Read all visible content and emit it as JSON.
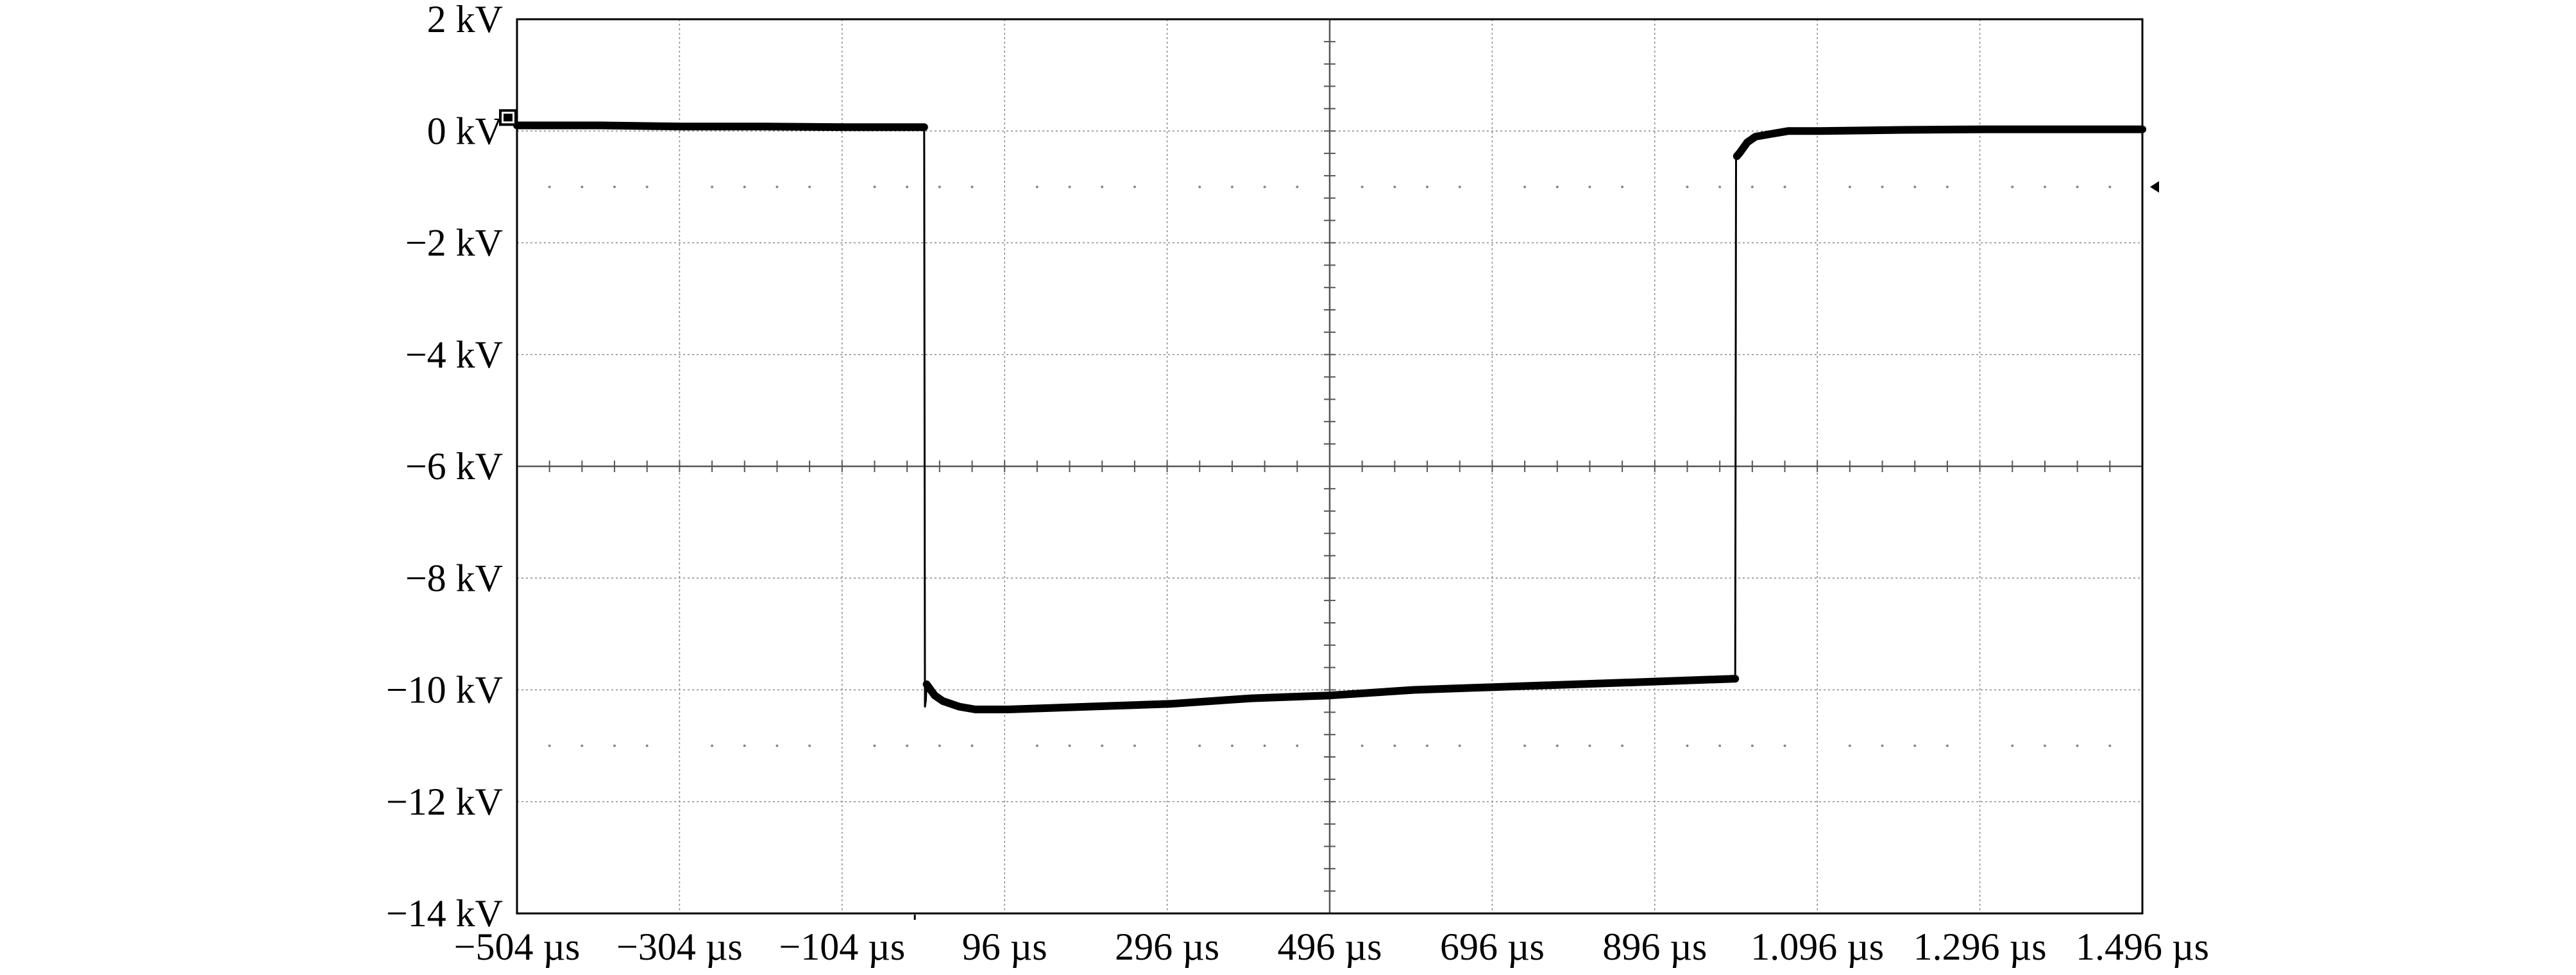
{
  "chart_data": {
    "type": "line",
    "title": "",
    "xlabel": "",
    "ylabel": "",
    "x_ticks": [
      -504,
      -304,
      -104,
      96,
      296,
      496,
      696,
      896,
      1096,
      1296,
      1496
    ],
    "x_tick_labels": [
      "−504 µs",
      "−304 µs",
      "−104 µs",
      "96 µs",
      "296 µs",
      "496 µs",
      "696 µs",
      "896 µs",
      "1.096 µs",
      "1.296 µs",
      "1.496 µs"
    ],
    "xlim": [
      -504,
      1496
    ],
    "y_ticks": [
      2,
      0,
      -2,
      -4,
      -6,
      -8,
      -10,
      -12,
      -14
    ],
    "y_tick_labels": [
      "2 kV",
      "0 kV",
      "−2 kV",
      "−4 kV",
      "−6 kV",
      "−8 kV",
      "−10 kV",
      "−12 kV",
      "−14 kV"
    ],
    "ylim": [
      -14,
      2
    ],
    "grid": true,
    "series": [
      {
        "x": [
          -504,
          -400,
          -300,
          -200,
          -100,
          -3,
          -2,
          -1,
          0,
          10,
          20,
          40,
          60,
          100,
          200,
          300,
          400,
          496,
          600,
          700,
          800,
          900,
          995,
          996,
          997,
          1000,
          1010,
          1020,
          1040,
          1060,
          1100,
          1200,
          1300,
          1400,
          1496
        ],
        "y": [
          0.1,
          0.1,
          0.08,
          0.08,
          0.07,
          0.07,
          -10.3,
          -10.2,
          -9.9,
          -10.1,
          -10.2,
          -10.3,
          -10.35,
          -10.35,
          -10.3,
          -10.25,
          -10.15,
          -10.1,
          -10.0,
          -9.95,
          -9.9,
          -9.85,
          -9.8,
          -0.5,
          -0.45,
          -0.4,
          -0.2,
          -0.1,
          -0.05,
          0.0,
          0.0,
          0.02,
          0.03,
          0.03,
          0.03
        ]
      }
    ],
    "colors": {
      "trace": "#000000",
      "axes": "#000000",
      "grid": "#888888"
    }
  }
}
